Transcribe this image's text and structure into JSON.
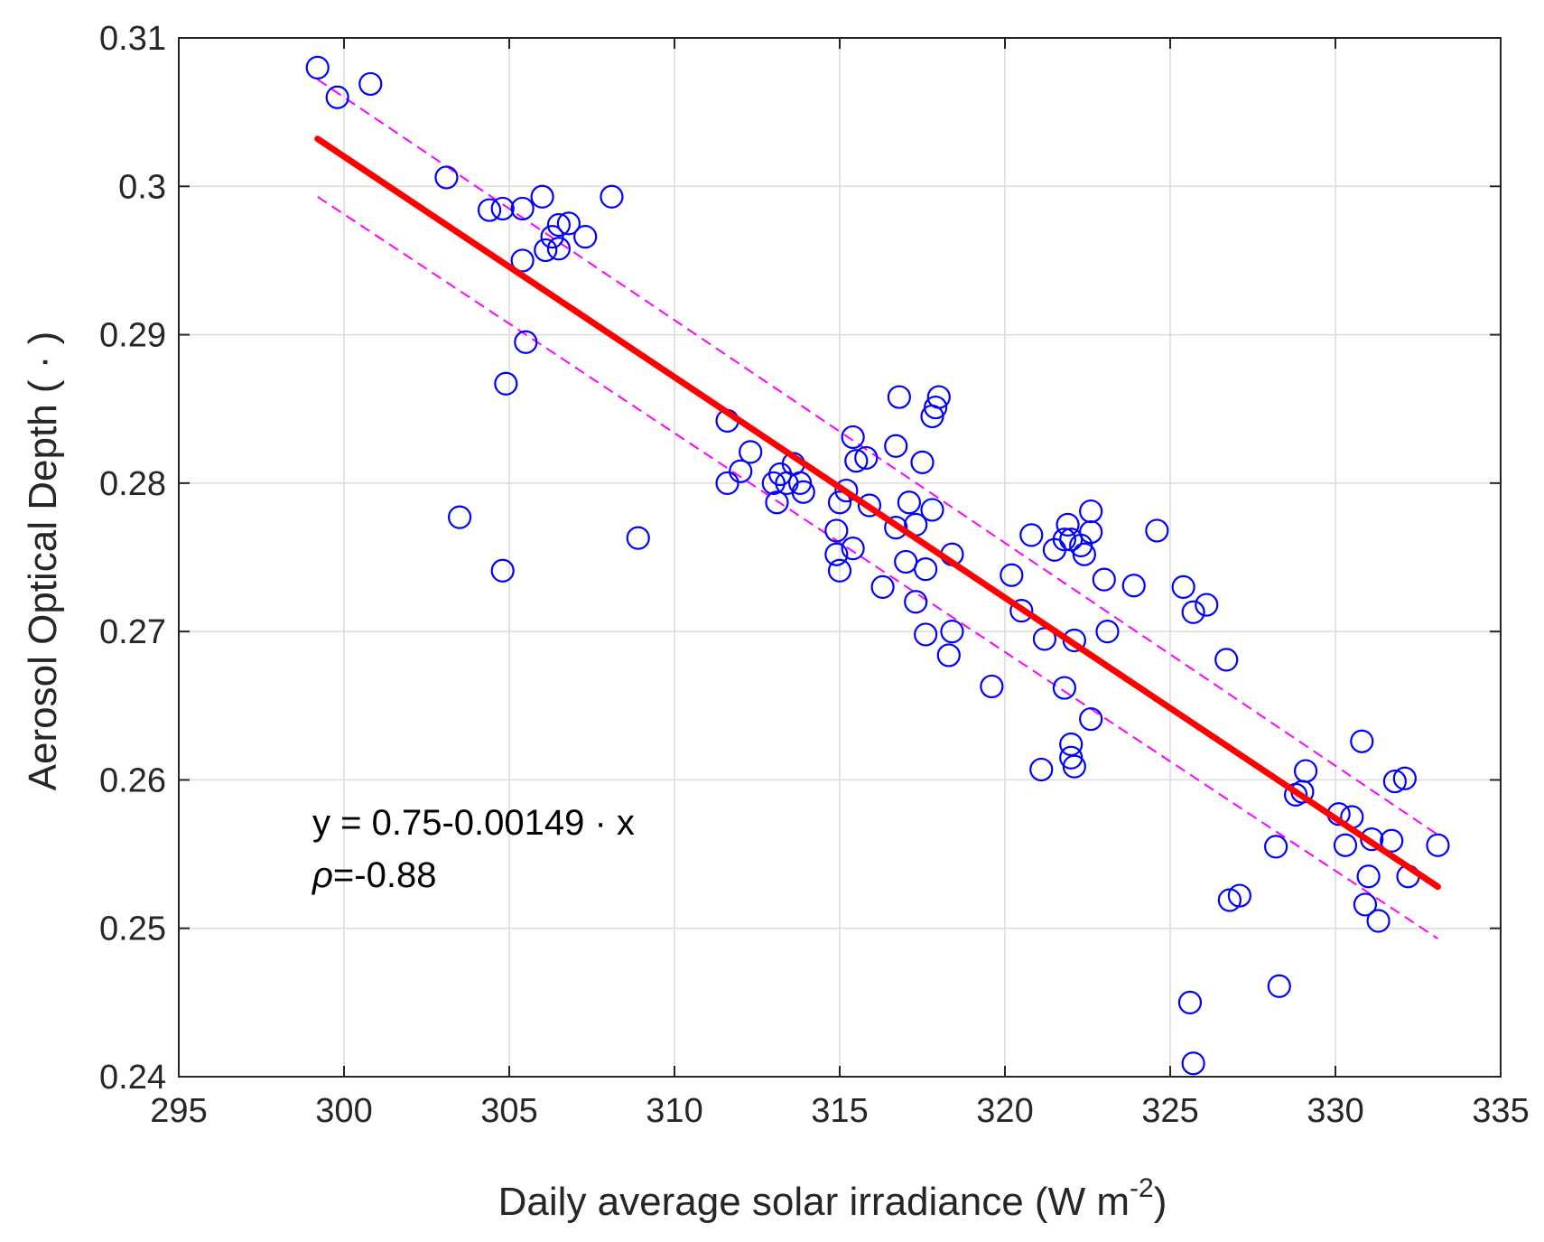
{
  "chart_data": {
    "type": "scatter",
    "title": "",
    "xlabel": "Daily average solar irradiance (W m",
    "xlabel_sup": "-2",
    "xlabel_close": ")",
    "ylabel": "Aerosol Optical Depth ( · )",
    "xlim": [
      295,
      335
    ],
    "ylim": [
      0.24,
      0.31
    ],
    "xticks": [
      "295",
      "300",
      "305",
      "310",
      "315",
      "320",
      "325",
      "330",
      "335"
    ],
    "yticks": [
      "0.24",
      "0.25",
      "0.26",
      "0.27",
      "0.28",
      "0.29",
      "0.3",
      "0.31"
    ],
    "grid": true,
    "colors": {
      "points": "#0000ff",
      "fit": "#ff0000",
      "bounds": "#ff00ff"
    },
    "annotations": {
      "equation": "y = 0.75-0.00149 · x",
      "rho_symbol": "ρ",
      "rho_value": "=-0.88"
    },
    "fit_line": {
      "x": [
        299.2,
        333.1
      ],
      "y": [
        0.3032,
        0.2528
      ]
    },
    "upper_bound": {
      "x": [
        299.2,
        333.1
      ],
      "y": [
        0.3072,
        0.2563
      ]
    },
    "lower_bound": {
      "x": [
        299.2,
        333.1
      ],
      "y": [
        0.2993,
        0.2493
      ]
    },
    "points": [
      [
        299.2,
        0.308
      ],
      [
        299.8,
        0.306
      ],
      [
        300.8,
        0.3069
      ],
      [
        303.1,
        0.3006
      ],
      [
        304.4,
        0.2984
      ],
      [
        304.8,
        0.2985
      ],
      [
        305.4,
        0.2985
      ],
      [
        306.0,
        0.2993
      ],
      [
        306.5,
        0.2974
      ],
      [
        306.8,
        0.2975
      ],
      [
        307.3,
        0.2966
      ],
      [
        306.3,
        0.2966
      ],
      [
        306.1,
        0.2957
      ],
      [
        306.5,
        0.2958
      ],
      [
        305.4,
        0.295
      ],
      [
        308.1,
        0.2993
      ],
      [
        305.5,
        0.2895
      ],
      [
        304.9,
        0.2867
      ],
      [
        303.5,
        0.2777
      ],
      [
        304.8,
        0.2741
      ],
      [
        308.9,
        0.2763
      ],
      [
        311.6,
        0.2842
      ],
      [
        311.6,
        0.28
      ],
      [
        312.0,
        0.2808
      ],
      [
        312.3,
        0.2821
      ],
      [
        313.0,
        0.28
      ],
      [
        313.1,
        0.2787
      ],
      [
        313.2,
        0.2806
      ],
      [
        313.4,
        0.28
      ],
      [
        313.6,
        0.2813
      ],
      [
        313.8,
        0.28
      ],
      [
        313.9,
        0.2794
      ],
      [
        314.9,
        0.2768
      ],
      [
        314.9,
        0.2752
      ],
      [
        315.0,
        0.2741
      ],
      [
        315.0,
        0.2787
      ],
      [
        315.2,
        0.2795
      ],
      [
        315.4,
        0.2831
      ],
      [
        315.5,
        0.2815
      ],
      [
        315.4,
        0.2756
      ],
      [
        315.8,
        0.2817
      ],
      [
        315.9,
        0.2785
      ],
      [
        316.3,
        0.273
      ],
      [
        316.7,
        0.2825
      ],
      [
        316.8,
        0.2858
      ],
      [
        316.7,
        0.277
      ],
      [
        317.0,
        0.2747
      ],
      [
        317.1,
        0.2787
      ],
      [
        317.3,
        0.2772
      ],
      [
        317.3,
        0.272
      ],
      [
        317.5,
        0.2814
      ],
      [
        317.6,
        0.2742
      ],
      [
        317.6,
        0.2698
      ],
      [
        317.8,
        0.2782
      ],
      [
        317.8,
        0.2845
      ],
      [
        317.9,
        0.2851
      ],
      [
        318.0,
        0.2858
      ],
      [
        318.3,
        0.2684
      ],
      [
        318.4,
        0.2752
      ],
      [
        318.4,
        0.27
      ],
      [
        319.6,
        0.2663
      ],
      [
        320.2,
        0.2738
      ],
      [
        320.5,
        0.2714
      ],
      [
        320.8,
        0.2765
      ],
      [
        321.1,
        0.2607
      ],
      [
        321.2,
        0.2695
      ],
      [
        321.5,
        0.2755
      ],
      [
        321.8,
        0.2762
      ],
      [
        321.9,
        0.2772
      ],
      [
        321.8,
        0.2662
      ],
      [
        322.0,
        0.2762
      ],
      [
        322.0,
        0.2624
      ],
      [
        322.0,
        0.2615
      ],
      [
        322.1,
        0.2694
      ],
      [
        322.1,
        0.2609
      ],
      [
        322.3,
        0.2758
      ],
      [
        322.4,
        0.2752
      ],
      [
        322.6,
        0.2781
      ],
      [
        322.6,
        0.2767
      ],
      [
        322.6,
        0.2641
      ],
      [
        323.0,
        0.2735
      ],
      [
        323.1,
        0.27
      ],
      [
        323.9,
        0.2731
      ],
      [
        324.6,
        0.2768
      ],
      [
        325.4,
        0.273
      ],
      [
        325.7,
        0.2713
      ],
      [
        326.1,
        0.2718
      ],
      [
        325.6,
        0.245
      ],
      [
        325.7,
        0.2409
      ],
      [
        326.7,
        0.2681
      ],
      [
        326.8,
        0.2519
      ],
      [
        327.1,
        0.2522
      ],
      [
        328.2,
        0.2555
      ],
      [
        328.3,
        0.2461
      ],
      [
        328.8,
        0.259
      ],
      [
        329.0,
        0.2592
      ],
      [
        329.1,
        0.2606
      ],
      [
        330.1,
        0.2577
      ],
      [
        330.3,
        0.2556
      ],
      [
        330.5,
        0.2575
      ],
      [
        330.8,
        0.2626
      ],
      [
        330.9,
        0.2516
      ],
      [
        331.0,
        0.2535
      ],
      [
        331.1,
        0.256
      ],
      [
        331.3,
        0.2505
      ],
      [
        331.7,
        0.2559
      ],
      [
        331.8,
        0.2599
      ],
      [
        332.1,
        0.2601
      ],
      [
        332.2,
        0.2535
      ],
      [
        333.1,
        0.2556
      ]
    ]
  }
}
